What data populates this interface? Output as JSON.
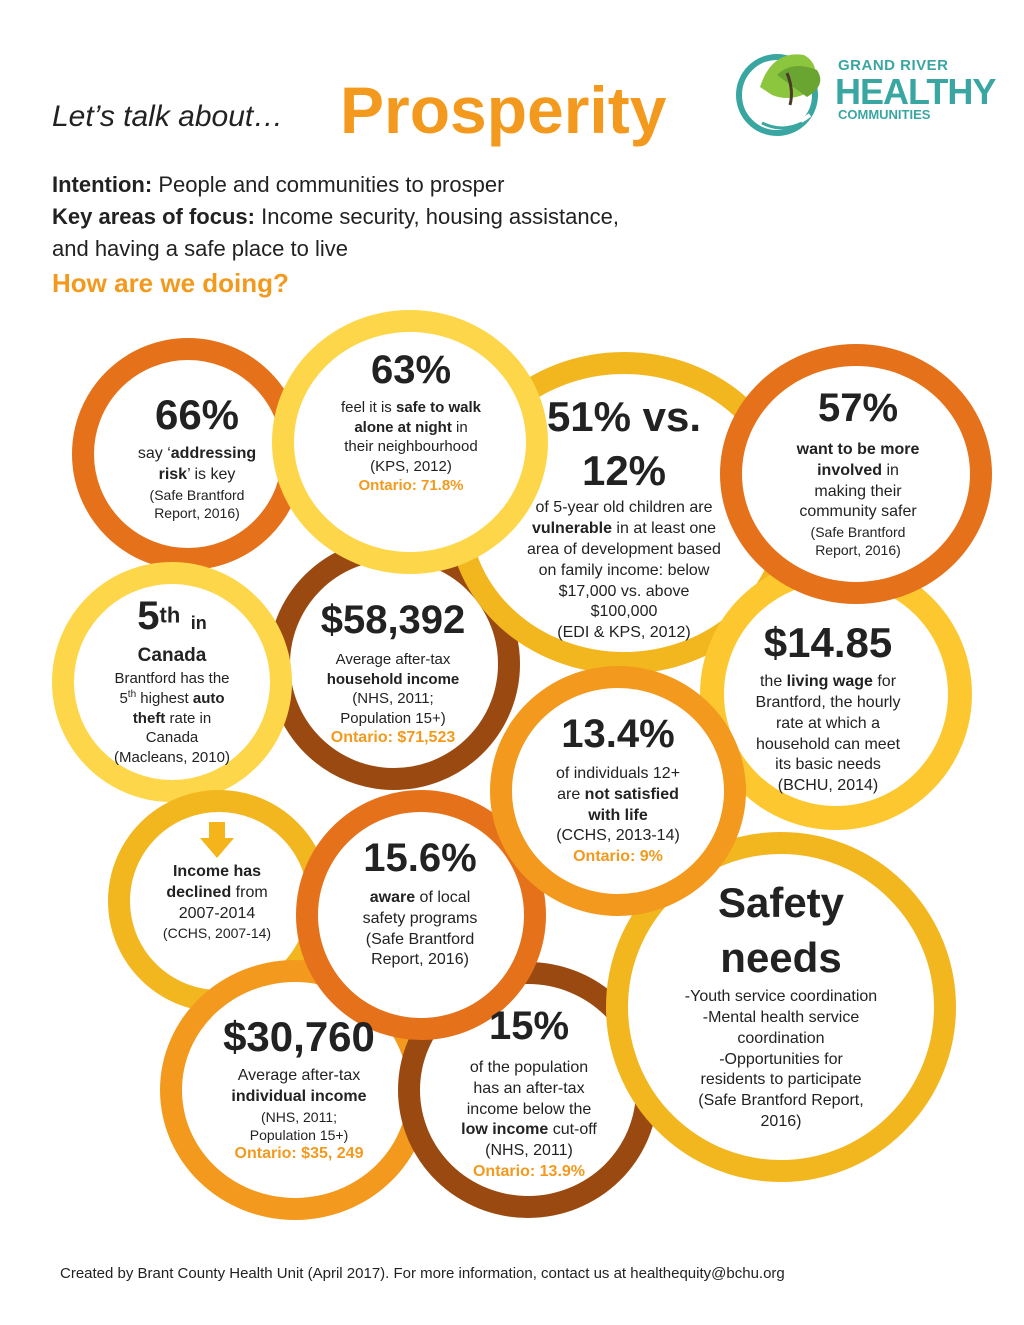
{
  "header": {
    "lead": "Let’s talk about…",
    "title": "Prosperity"
  },
  "logo": {
    "line1": "GRAND RIVER",
    "line2": "HEALTHY",
    "line3": "COMMUNITIES"
  },
  "intro": {
    "intention_label": "Intention:",
    "intention_text": "People and communities to prosper",
    "focus_label": "Key areas of focus:",
    "focus_text": "Income security, housing assistance,",
    "focus_text2": "and having a safe place to live",
    "question": "How are we doing?"
  },
  "stats": {
    "s66": {
      "value": "66%",
      "l1a": "say ‘",
      "l1b": "addressing",
      "l2a": "risk",
      "l2b": "’ is key",
      "src1": "(Safe Brantford",
      "src2": "Report, 2016)"
    },
    "s63": {
      "value": "63%",
      "l1a": "feel it is ",
      "l1b": "safe to walk",
      "l2a": "alone at night",
      "l2b": " in",
      "l3": "their neighbourhood",
      "l4": "(KPS, 2012)",
      "ontario": "Ontario: 71.8%"
    },
    "s51": {
      "value1": "51% vs.",
      "value2": "12%",
      "l1": "of 5-year old children are",
      "l2a": "vulnerable",
      "l2b": " in at least one",
      "l3": "area of development based",
      "l4": "on family income: below",
      "l5": "$17,000 vs. above",
      "l6": "$100,000",
      "l7": "(EDI & KPS, 2012)"
    },
    "s57": {
      "value": "57%",
      "l1": "want to be more",
      "l2a": "involved",
      "l2b": " in",
      "l3": "making their",
      "l4": "community safer",
      "src1": "(Safe Brantford",
      "src2": "Report, 2016)"
    },
    "s5th": {
      "value": "5",
      "sup": "th",
      "in": "in",
      "canada": "Canada",
      "l1": "Brantford has the",
      "l2a": "5",
      "l2sup": "th",
      "l2b": " highest ",
      "l2c": "auto",
      "l3a": "theft",
      "l3b": " rate in",
      "l4": "Canada",
      "src": "(Macleans, 2010)"
    },
    "s58": {
      "value": "$58,392",
      "l1": "Average after-tax",
      "l2": "household income",
      "l3": "(NHS, 2011;",
      "l4": "Population 15+)",
      "ontario": "Ontario: $71,523"
    },
    "s1485": {
      "value": "$14.85",
      "l1a": "the ",
      "l1b": "living wage",
      "l1c": " for",
      "l2": "Brantford, the hourly",
      "l3": "rate at which a",
      "l4": "household can meet",
      "l5": "its basic needs",
      "src": "(BCHU, 2014)"
    },
    "s134": {
      "value": "13.4%",
      "l1": "of individuals 12+",
      "l2a": "are ",
      "l2b": "not satisfied",
      "l3": "with life",
      "l4": "(CCHS, 2013-14)",
      "ontario": "Ontario: 9%"
    },
    "sinc": {
      "l1": "Income has",
      "l2a": "declined",
      "l2b": " from",
      "l3": "2007-2014",
      "src": "(CCHS, 2007-14)"
    },
    "s156": {
      "value": "15.6%",
      "l1a": "aware",
      "l1b": " of local",
      "l2": "safety programs",
      "l3": "(Safe Brantford",
      "l4": "Report, 2016)"
    },
    "ssafety": {
      "title1": "Safety",
      "title2": "needs",
      "l1": "-Youth service coordination",
      "l2": "-Mental health service",
      "l3": "coordination",
      "l4": "-Opportunities for",
      "l5": "residents to participate",
      "l6": "(Safe Brantford Report,",
      "l7": "2016)"
    },
    "s30": {
      "value": "$30,760",
      "l1": "Average after-tax",
      "l2": "individual income",
      "l3": "(NHS, 2011;",
      "l4": "Population 15+)",
      "ontario": "Ontario: $35, 249"
    },
    "s15": {
      "value": "15%",
      "l1": "of the population",
      "l2": "has an after-tax",
      "l3": "income below the",
      "l4a": "low income",
      "l4b": " cut-off",
      "l5": "(NHS, 2011)",
      "ontario": "Ontario: 13.9%"
    }
  },
  "footer": "Created by Brant County Health Unit (April 2017). For more information, contact us at healthequity@bchu.org",
  "colors": {
    "orange": "#f39a1e",
    "dark_orange": "#e5711a",
    "brown": "#9a4a10",
    "yellow": "#fdc82f",
    "gold": "#f2b61f",
    "teal": "#3aa6a2"
  }
}
